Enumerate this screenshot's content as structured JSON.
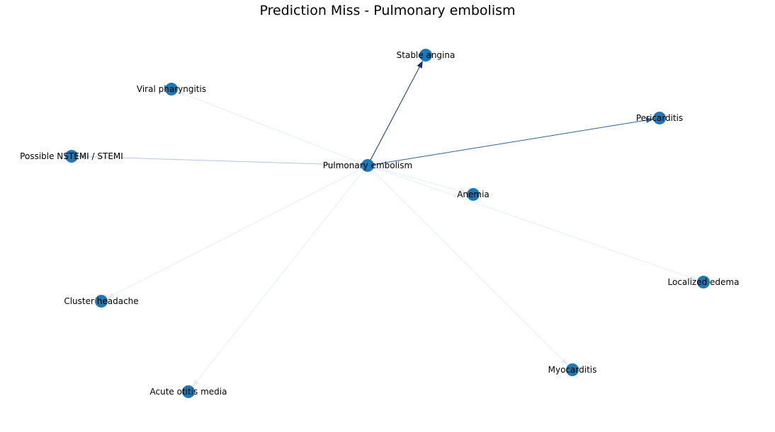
{
  "title": "Prediction Miss - Pulmonary embolism",
  "colors": {
    "node": "#1f77b4",
    "edge_strong": "#08306b",
    "edge_medium": "#2a6398",
    "edge_light": "#b0c8de",
    "edge_faint": "#e3edf6",
    "label": "#000000"
  },
  "nodes": [
    {
      "id": "pe",
      "label": "Pulmonary embolism"
    },
    {
      "id": "stable_angina",
      "label": "Stable angina"
    },
    {
      "id": "viral_pharyngitis",
      "label": "Viral pharyngitis"
    },
    {
      "id": "pericarditis",
      "label": "Pericarditis"
    },
    {
      "id": "nstemi",
      "label": "Possible NSTEMI / STEMI"
    },
    {
      "id": "anemia",
      "label": "Anemia"
    },
    {
      "id": "localized_edema",
      "label": "Localized edema"
    },
    {
      "id": "cluster_headache",
      "label": "Cluster headache"
    },
    {
      "id": "myocarditis",
      "label": "Myocarditis"
    },
    {
      "id": "acute_otitis_media",
      "label": "Acute otitis media"
    }
  ],
  "edges": [
    {
      "from": "pe",
      "to": "viral_pharyngitis",
      "strength": "faint"
    },
    {
      "from": "pe",
      "to": "cluster_headache",
      "strength": "faint"
    },
    {
      "from": "pe",
      "to": "acute_otitis_media",
      "strength": "faint"
    },
    {
      "from": "pe",
      "to": "myocarditis",
      "strength": "faint"
    },
    {
      "from": "pe",
      "to": "localized_edema",
      "strength": "faint"
    },
    {
      "from": "pe",
      "to": "anemia",
      "strength": "faint"
    },
    {
      "from": "pe",
      "to": "nstemi",
      "strength": "light"
    },
    {
      "from": "pe",
      "to": "pericarditis",
      "strength": "medium"
    },
    {
      "from": "pe",
      "to": "stable_angina",
      "strength": "strong"
    }
  ]
}
